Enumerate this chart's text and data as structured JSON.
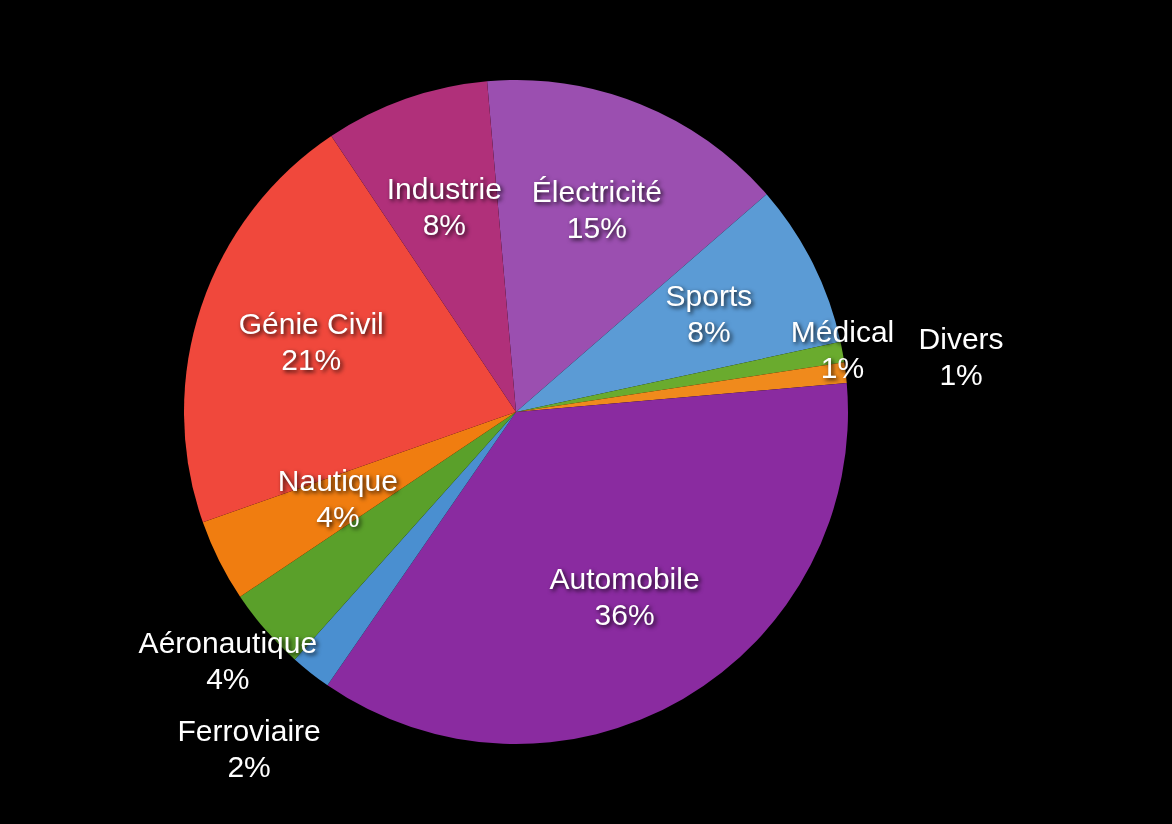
{
  "chart_data": {
    "type": "pie",
    "categories": [
      "Électricité",
      "Sports",
      "Médical",
      "Divers",
      "Automobile",
      "Ferroviaire",
      "Aéronautique",
      "Nautique",
      "Génie Civil",
      "Industrie"
    ],
    "values": [
      15,
      8,
      1,
      1,
      36,
      2,
      4,
      4,
      21,
      8
    ],
    "value_labels": [
      "15%",
      "8%",
      "1%",
      "1%",
      "36%",
      "2%",
      "4%",
      "4%",
      "21%",
      "8%"
    ],
    "colors": [
      "#9b4fb0",
      "#5b9bd5",
      "#6aab2e",
      "#f08a1c",
      "#8a2ba0",
      "#4a8fd0",
      "#5aa02a",
      "#f07d10",
      "#f0483c",
      "#b0307a"
    ]
  }
}
